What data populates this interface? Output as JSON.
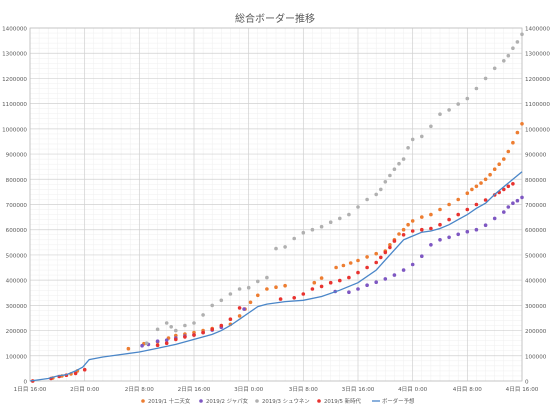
{
  "chart_data": {
    "type": "scatter",
    "title": "総合ボーダー推移",
    "x_ticks": [
      "1日目 16:00",
      "2日目 0:00",
      "2日目 8:00",
      "2日目 16:00",
      "3日目 0:00",
      "3日目 8:00",
      "3日目 16:00",
      "4日目 0:00",
      "4日目 8:00",
      "4日目 16:00"
    ],
    "xlim": [
      0,
      54
    ],
    "ylim": [
      0,
      1400000
    ],
    "y_ticks": [
      0,
      100000,
      200000,
      300000,
      400000,
      500000,
      600000,
      700000,
      800000,
      900000,
      1000000,
      1100000,
      1200000,
      1300000,
      1400000
    ],
    "y_ticks_right": true,
    "grid": true,
    "legend_position": "bottom",
    "series": [
      {
        "name": "2019/1 十二天女",
        "style": "marker",
        "color": "#ed7d31",
        "points": [
          [
            0.3,
            0
          ],
          [
            2.5,
            12000
          ],
          [
            3.5,
            20000
          ],
          [
            4.5,
            28000
          ],
          [
            5.2,
            40000
          ],
          [
            10.8,
            128000
          ],
          [
            12.5,
            148000
          ],
          [
            14,
            155000
          ],
          [
            15.2,
            170000
          ],
          [
            16,
            180000
          ],
          [
            17,
            186000
          ],
          [
            18,
            192000
          ],
          [
            19,
            200000
          ],
          [
            20,
            208000
          ],
          [
            21,
            215000
          ],
          [
            22,
            225000
          ],
          [
            23,
            258000
          ],
          [
            23.6,
            285000
          ],
          [
            24.2,
            312000
          ],
          [
            25,
            340000
          ],
          [
            26,
            365000
          ],
          [
            27,
            372000
          ],
          [
            28,
            378000
          ],
          [
            31.2,
            390000
          ],
          [
            32,
            408000
          ],
          [
            33.6,
            450000
          ],
          [
            34.4,
            458000
          ],
          [
            35.2,
            468000
          ],
          [
            36,
            478000
          ],
          [
            37,
            492000
          ],
          [
            38,
            505000
          ],
          [
            39,
            515000
          ],
          [
            39.5,
            540000
          ],
          [
            40,
            560000
          ],
          [
            40.5,
            583000
          ],
          [
            41,
            600000
          ],
          [
            41.5,
            620000
          ],
          [
            42,
            635000
          ],
          [
            43,
            650000
          ],
          [
            44,
            660000
          ],
          [
            45,
            680000
          ],
          [
            46,
            700000
          ],
          [
            47,
            720000
          ],
          [
            48,
            745000
          ],
          [
            48.5,
            760000
          ],
          [
            49,
            772000
          ],
          [
            49.5,
            785000
          ],
          [
            50,
            800000
          ],
          [
            50.5,
            818000
          ],
          [
            51,
            840000
          ],
          [
            51.5,
            860000
          ],
          [
            52,
            880000
          ],
          [
            52.5,
            910000
          ],
          [
            53,
            945000
          ],
          [
            53.5,
            985000
          ],
          [
            54,
            1020000
          ]
        ]
      },
      {
        "name": "2019/2 ジャパ女",
        "style": "marker",
        "color": "#7e57c2",
        "points": [
          [
            12.3,
            140000
          ],
          [
            13,
            145000
          ],
          [
            14,
            158000
          ],
          [
            15,
            162000
          ],
          [
            16,
            170000
          ],
          [
            17,
            178000
          ],
          [
            18,
            183000
          ],
          [
            19,
            192000
          ],
          [
            20,
            202000
          ],
          [
            21,
            213000
          ],
          [
            23.5,
            285000
          ],
          [
            33.5,
            355000
          ],
          [
            35,
            352000
          ],
          [
            36,
            365000
          ],
          [
            37,
            380000
          ],
          [
            38,
            392000
          ],
          [
            39,
            405000
          ],
          [
            40,
            420000
          ],
          [
            41,
            440000
          ],
          [
            42,
            462000
          ],
          [
            43,
            495000
          ],
          [
            44,
            540000
          ],
          [
            45,
            560000
          ],
          [
            46,
            570000
          ],
          [
            47,
            582000
          ],
          [
            48,
            592000
          ],
          [
            49,
            600000
          ],
          [
            50,
            618000
          ],
          [
            51,
            645000
          ],
          [
            52,
            670000
          ],
          [
            52.5,
            690000
          ],
          [
            53,
            705000
          ],
          [
            53.5,
            715000
          ],
          [
            54,
            728000
          ]
        ]
      },
      {
        "name": "2019/3 シュウネン",
        "style": "marker",
        "color": "#b0b0b0",
        "points": [
          [
            12.8,
            150000
          ],
          [
            14,
            205000
          ],
          [
            15,
            230000
          ],
          [
            15.5,
            215000
          ],
          [
            16,
            200000
          ],
          [
            17,
            220000
          ],
          [
            18,
            230000
          ],
          [
            19,
            262000
          ],
          [
            20,
            300000
          ],
          [
            21,
            320000
          ],
          [
            22,
            345000
          ],
          [
            23,
            365000
          ],
          [
            24,
            370000
          ],
          [
            25,
            395000
          ],
          [
            26,
            410000
          ],
          [
            27,
            525000
          ],
          [
            28,
            532000
          ],
          [
            29,
            565000
          ],
          [
            30,
            588000
          ],
          [
            31,
            600000
          ],
          [
            32,
            612000
          ],
          [
            33,
            630000
          ],
          [
            34,
            645000
          ],
          [
            35,
            660000
          ],
          [
            36,
            690000
          ],
          [
            37,
            720000
          ],
          [
            38,
            740000
          ],
          [
            38.5,
            760000
          ],
          [
            39,
            790000
          ],
          [
            39.5,
            815000
          ],
          [
            40,
            840000
          ],
          [
            40.5,
            862000
          ],
          [
            41,
            880000
          ],
          [
            41.5,
            925000
          ],
          [
            42,
            958000
          ],
          [
            43,
            970000
          ],
          [
            44,
            1010000
          ],
          [
            45,
            1058000
          ],
          [
            46,
            1075000
          ],
          [
            47,
            1098000
          ],
          [
            48,
            1120000
          ],
          [
            49,
            1160000
          ],
          [
            50,
            1200000
          ],
          [
            51,
            1240000
          ],
          [
            52,
            1270000
          ],
          [
            52.5,
            1290000
          ],
          [
            53,
            1320000
          ],
          [
            53.5,
            1345000
          ],
          [
            54,
            1375000
          ]
        ]
      },
      {
        "name": "2019/5 新時代",
        "style": "marker",
        "color": "#e8322f",
        "points": [
          [
            0.3,
            0
          ],
          [
            2.3,
            10000
          ],
          [
            3.2,
            18000
          ],
          [
            4,
            23000
          ],
          [
            5,
            30000
          ],
          [
            6,
            45000
          ],
          [
            14,
            142000
          ],
          [
            15,
            150000
          ],
          [
            16,
            165000
          ],
          [
            17,
            175000
          ],
          [
            18,
            182000
          ],
          [
            19,
            192000
          ],
          [
            20,
            205000
          ],
          [
            21,
            220000
          ],
          [
            22,
            245000
          ],
          [
            23,
            290000
          ],
          [
            27.5,
            325000
          ],
          [
            29,
            330000
          ],
          [
            30,
            345000
          ],
          [
            31,
            365000
          ],
          [
            32,
            375000
          ],
          [
            33,
            390000
          ],
          [
            34,
            398000
          ],
          [
            35,
            410000
          ],
          [
            36,
            430000
          ],
          [
            37,
            450000
          ],
          [
            38,
            470000
          ],
          [
            38.5,
            490000
          ],
          [
            39,
            510000
          ],
          [
            39.5,
            530000
          ],
          [
            40,
            555000
          ],
          [
            41,
            580000
          ],
          [
            42,
            595000
          ],
          [
            43,
            600000
          ],
          [
            44,
            605000
          ],
          [
            45,
            620000
          ],
          [
            46,
            640000
          ],
          [
            47,
            660000
          ],
          [
            48,
            680000
          ],
          [
            49,
            700000
          ],
          [
            50,
            718000
          ],
          [
            51,
            738000
          ],
          [
            51.5,
            748000
          ],
          [
            52,
            760000
          ],
          [
            52.5,
            772000
          ],
          [
            53,
            782000
          ]
        ]
      },
      {
        "name": "ボーダー予想",
        "style": "line",
        "color": "#4a86c8",
        "points": [
          [
            0,
            0
          ],
          [
            2,
            10000
          ],
          [
            3,
            20000
          ],
          [
            4,
            25000
          ],
          [
            5,
            40000
          ],
          [
            5.8,
            55000
          ],
          [
            6.5,
            85000
          ],
          [
            8,
            95000
          ],
          [
            10,
            105000
          ],
          [
            12,
            115000
          ],
          [
            14,
            130000
          ],
          [
            16,
            145000
          ],
          [
            18,
            165000
          ],
          [
            20,
            185000
          ],
          [
            21,
            200000
          ],
          [
            22,
            220000
          ],
          [
            23,
            245000
          ],
          [
            24,
            270000
          ],
          [
            25,
            295000
          ],
          [
            26,
            305000
          ],
          [
            28,
            315000
          ],
          [
            30,
            320000
          ],
          [
            32,
            335000
          ],
          [
            34,
            360000
          ],
          [
            36,
            390000
          ],
          [
            38,
            440000
          ],
          [
            40,
            520000
          ],
          [
            41,
            560000
          ],
          [
            42,
            575000
          ],
          [
            43,
            590000
          ],
          [
            44,
            595000
          ],
          [
            45,
            605000
          ],
          [
            46,
            620000
          ],
          [
            47,
            640000
          ],
          [
            48,
            660000
          ],
          [
            49,
            685000
          ],
          [
            50,
            705000
          ],
          [
            51,
            740000
          ],
          [
            52,
            770000
          ],
          [
            53,
            800000
          ],
          [
            54,
            830000
          ]
        ]
      }
    ]
  }
}
